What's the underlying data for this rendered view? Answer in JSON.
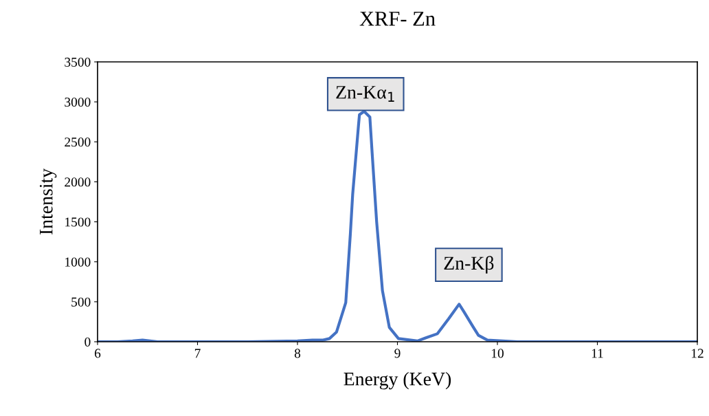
{
  "chart_data": {
    "type": "line",
    "title": "XRF- Zn",
    "xlabel": "Energy (KeV)",
    "ylabel": "Intensity",
    "xlim": [
      6,
      12
    ],
    "xticks": [
      6,
      7,
      8,
      9,
      10,
      11,
      12
    ],
    "ylim": [
      0,
      3500
    ],
    "yticks": [
      0,
      500,
      1000,
      1500,
      2000,
      2500,
      3000,
      3500
    ],
    "grid": false,
    "legend": false,
    "marker": "none",
    "line_style": "solid",
    "series": [
      {
        "color": "#4472c4",
        "x": [
          6.0,
          6.2,
          6.35,
          6.45,
          6.6,
          7.0,
          7.5,
          8.0,
          8.15,
          8.25,
          8.32,
          8.39,
          8.483,
          8.529,
          8.552,
          8.61,
          8.62,
          8.667,
          8.724,
          8.747,
          8.792,
          8.85,
          8.919,
          9.01,
          9.2,
          9.285,
          9.4,
          9.514,
          9.617,
          9.663,
          9.755,
          9.81,
          9.9,
          10.2,
          11.0,
          12.0
        ],
        "values": [
          0,
          0,
          10,
          20,
          0,
          0,
          0,
          10,
          20,
          20,
          40,
          120,
          490,
          1350,
          1840,
          2700,
          2840,
          2880,
          2810,
          2360,
          1500,
          640,
          180,
          40,
          10,
          50,
          100,
          290,
          470,
          380,
          190,
          80,
          20,
          0,
          0,
          0
        ]
      }
    ],
    "annotations": [
      "Zn-Kα$_{1}$",
      "Zn-Kβ"
    ]
  }
}
